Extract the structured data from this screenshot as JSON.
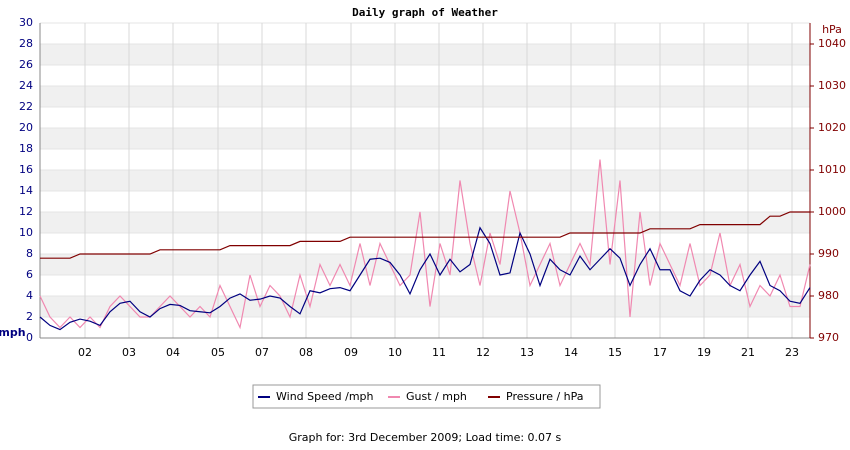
{
  "chart_data": {
    "type": "line",
    "title": "Daily graph of Weather",
    "ylabel": "mph",
    "y2label": "hPa",
    "footer": "Graph for: 3rd December 2009; Load time: 0.07 s",
    "grid": true,
    "x": [
      0,
      1,
      2,
      3,
      4,
      5,
      6,
      7,
      8,
      9,
      10,
      11,
      12,
      13,
      14,
      15,
      16,
      17,
      18,
      19,
      20,
      21,
      22,
      23,
      24,
      25,
      26,
      27,
      28,
      29,
      30,
      31,
      32,
      33,
      34,
      35,
      36,
      37,
      38,
      39,
      40,
      41,
      42,
      43,
      44,
      45,
      46,
      47,
      48,
      49,
      50,
      51,
      52,
      53,
      54,
      55,
      56,
      57,
      58,
      59,
      60,
      61,
      62,
      63,
      64,
      65,
      66,
      67,
      68,
      69,
      70,
      71,
      72,
      73,
      74,
      75,
      76,
      77
    ],
    "xlim": [
      0,
      77
    ],
    "xticks": [
      {
        "value": 4.5,
        "label": "02"
      },
      {
        "value": 8.9,
        "label": "03"
      },
      {
        "value": 13.3,
        "label": "04"
      },
      {
        "value": 17.8,
        "label": "05"
      },
      {
        "value": 22.2,
        "label": "07"
      },
      {
        "value": 26.6,
        "label": "08"
      },
      {
        "value": 31.1,
        "label": "09"
      },
      {
        "value": 35.5,
        "label": "10"
      },
      {
        "value": 39.9,
        "label": "11"
      },
      {
        "value": 44.3,
        "label": "12"
      },
      {
        "value": 48.7,
        "label": "13"
      },
      {
        "value": 53.1,
        "label": "14"
      },
      {
        "value": 57.5,
        "label": "15"
      },
      {
        "value": 62,
        "label": "17"
      },
      {
        "value": 66.4,
        "label": "19"
      },
      {
        "value": 70.8,
        "label": "21"
      },
      {
        "value": 75.2,
        "label": "23"
      }
    ],
    "ylim": [
      0,
      30
    ],
    "yticks": [
      0,
      2,
      4,
      6,
      8,
      10,
      12,
      14,
      16,
      18,
      20,
      22,
      24,
      26,
      28,
      30
    ],
    "y2lim": [
      970,
      1045
    ],
    "y2ticks": [
      970,
      980,
      990,
      1000,
      1010,
      1020,
      1030,
      1040
    ],
    "series": [
      {
        "name": "Wind Speed /mph",
        "color": "#000080",
        "values": [
          2,
          1.2,
          0.8,
          1.5,
          1.8,
          1.6,
          1.2,
          2.5,
          3.3,
          3.5,
          2.5,
          2,
          2.8,
          3.2,
          3.1,
          2.6,
          2.5,
          2.4,
          3,
          3.8,
          4.2,
          3.6,
          3.7,
          4,
          3.8,
          3,
          2.3,
          4.5,
          4.3,
          4.7,
          4.8,
          4.5,
          6,
          7.5,
          7.6,
          7.2,
          6,
          4.2,
          6.5,
          8,
          6,
          7.5,
          6.3,
          7,
          10.5,
          9,
          6,
          6.2,
          10,
          8,
          5,
          7.5,
          6.5,
          6,
          7.8,
          6.5,
          7.5,
          8.5,
          7.6,
          5,
          7,
          8.5,
          6.5,
          6.5,
          4.5,
          4,
          5.5,
          6.5,
          6,
          5,
          4.5,
          6,
          7.3,
          5,
          4.5,
          3.5,
          3.3,
          4.8
        ]
      },
      {
        "name": "Gust / mph",
        "color": "#f088b0",
        "values": [
          4,
          2,
          1,
          2,
          1,
          2,
          1,
          3,
          4,
          3,
          2,
          2,
          3,
          4,
          3,
          2,
          3,
          2,
          5,
          3,
          1,
          6,
          3,
          5,
          4,
          2,
          6,
          3,
          7,
          5,
          7,
          5,
          9,
          5,
          9,
          7,
          5,
          6,
          12,
          3,
          9,
          6,
          15,
          9,
          5,
          10,
          7,
          14,
          10,
          5,
          7,
          9,
          5,
          7,
          9,
          7,
          17,
          7,
          15,
          2,
          12,
          5,
          9,
          7,
          5,
          9,
          5,
          6,
          10,
          5,
          7,
          3,
          5,
          4,
          6,
          3,
          3,
          7
        ]
      },
      {
        "name": "Pressure / hPa",
        "color": "#800000",
        "axis": "y2",
        "values": [
          989,
          989,
          989,
          989,
          990,
          990,
          990,
          990,
          990,
          990,
          990,
          990,
          991,
          991,
          991,
          991,
          991,
          991,
          991,
          992,
          992,
          992,
          992,
          992,
          992,
          992,
          993,
          993,
          993,
          993,
          993,
          994,
          994,
          994,
          994,
          994,
          994,
          994,
          994,
          994,
          994,
          994,
          994,
          994,
          994,
          994,
          994,
          994,
          994,
          994,
          994,
          994,
          994,
          995,
          995,
          995,
          995,
          995,
          995,
          995,
          995,
          996,
          996,
          996,
          996,
          996,
          997,
          997,
          997,
          997,
          997,
          997,
          997,
          999,
          999,
          1000,
          1000,
          1000
        ]
      }
    ]
  }
}
